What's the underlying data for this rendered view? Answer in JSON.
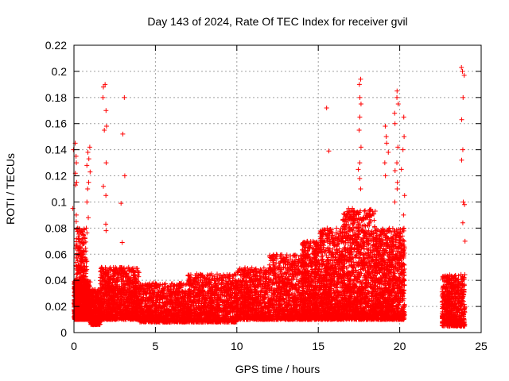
{
  "chart_data": {
    "type": "scatter",
    "title": "Day 143 of 2024, Rate Of TEC Index for receiver gvil",
    "xlabel": "GPS time / hours",
    "ylabel": "ROTI / TECUs",
    "xlim": [
      0,
      25
    ],
    "ylim": [
      0,
      0.22
    ],
    "x_ticks": [
      0,
      5,
      10,
      15,
      20,
      25
    ],
    "x_tick_labels": [
      "0",
      "5",
      "10",
      "15",
      "20",
      "25"
    ],
    "y_ticks": [
      0,
      0.02,
      0.04,
      0.06,
      0.08,
      0.1,
      0.12,
      0.14,
      0.16,
      0.18,
      0.2,
      0.22
    ],
    "y_tick_labels": [
      "0",
      "0.02",
      "0.04",
      "0.06",
      "0.08",
      "0.1",
      "0.12",
      "0.14",
      "0.16",
      "0.18",
      "0.2",
      "0.22"
    ],
    "grid": true,
    "marker": "+",
    "color": "#ff0000",
    "dense_bands": [
      {
        "x": [
          0.0,
          1.0
        ],
        "y": [
          0.01,
          0.04
        ],
        "count": 900
      },
      {
        "x": [
          0.1,
          0.8
        ],
        "y": [
          0.03,
          0.08
        ],
        "count": 250
      },
      {
        "x": [
          1.0,
          1.6
        ],
        "y": [
          0.006,
          0.033
        ],
        "count": 350
      },
      {
        "x": [
          1.6,
          4.0
        ],
        "y": [
          0.01,
          0.05
        ],
        "count": 1100
      },
      {
        "x": [
          4.0,
          7.0
        ],
        "y": [
          0.008,
          0.038
        ],
        "count": 1000
      },
      {
        "x": [
          7.0,
          10.0
        ],
        "y": [
          0.008,
          0.045
        ],
        "count": 1050
      },
      {
        "x": [
          10.0,
          12.0
        ],
        "y": [
          0.01,
          0.05
        ],
        "count": 750
      },
      {
        "x": [
          12.0,
          14.0
        ],
        "y": [
          0.01,
          0.06
        ],
        "count": 800
      },
      {
        "x": [
          14.0,
          15.0
        ],
        "y": [
          0.01,
          0.07
        ],
        "count": 650
      },
      {
        "x": [
          15.0,
          16.5
        ],
        "y": [
          0.01,
          0.08
        ],
        "count": 900
      },
      {
        "x": [
          16.5,
          18.5
        ],
        "y": [
          0.01,
          0.095
        ],
        "count": 1200
      },
      {
        "x": [
          18.5,
          20.3
        ],
        "y": [
          0.01,
          0.08
        ],
        "count": 1100
      },
      {
        "x": [
          22.6,
          24.0
        ],
        "y": [
          0.005,
          0.045
        ],
        "count": 650
      }
    ],
    "spikes": [
      {
        "x": 0.05,
        "values": [
          0.145,
          0.14,
          0.135,
          0.13,
          0.122,
          0.115,
          0.113,
          0.095,
          0.09,
          0.085
        ]
      },
      {
        "x": 0.9,
        "values": [
          0.142,
          0.138,
          0.133,
          0.128,
          0.123,
          0.115,
          0.11,
          0.1,
          0.088
        ]
      },
      {
        "x": 1.9,
        "values": [
          0.19,
          0.188,
          0.18,
          0.17,
          0.158,
          0.155,
          0.13,
          0.112,
          0.105,
          0.083,
          0.078
        ]
      },
      {
        "x": 3.0,
        "values": [
          0.18,
          0.152,
          0.12,
          0.099,
          0.069
        ]
      },
      {
        "x": 15.6,
        "values": [
          0.172,
          0.139
        ]
      },
      {
        "x": 17.5,
        "values": [
          0.194,
          0.19,
          0.18,
          0.175,
          0.165,
          0.155,
          0.142,
          0.13,
          0.125,
          0.118,
          0.11
        ]
      },
      {
        "x": 19.2,
        "values": [
          0.158,
          0.15,
          0.145,
          0.138,
          0.13,
          0.12
        ]
      },
      {
        "x": 19.8,
        "values": [
          0.185,
          0.18,
          0.175,
          0.168,
          0.16,
          0.142,
          0.13,
          0.124,
          0.115,
          0.11,
          0.1
        ]
      },
      {
        "x": 20.2,
        "values": [
          0.165,
          0.15,
          0.14,
          0.125,
          0.105,
          0.09
        ]
      },
      {
        "x": 23.9,
        "values": [
          0.203,
          0.2,
          0.197,
          0.18,
          0.163,
          0.14,
          0.132,
          0.1,
          0.098,
          0.084,
          0.07
        ]
      }
    ]
  }
}
